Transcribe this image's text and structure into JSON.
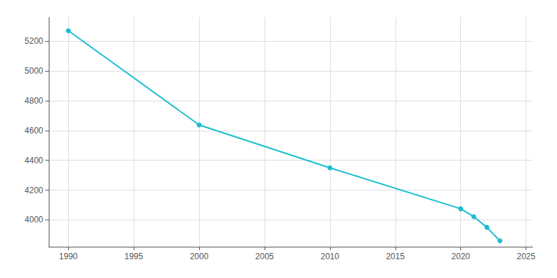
{
  "chart_data": {
    "type": "line",
    "x": [
      1990,
      2000,
      2010,
      2020,
      2021,
      2022,
      2023
    ],
    "values": [
      5270,
      4638,
      4350,
      4075,
      4022,
      3950,
      3860
    ],
    "color": "#17becf",
    "marker": "circle",
    "xlim": [
      1988.5,
      2025.5
    ],
    "ylim": [
      3820,
      5360
    ],
    "xticks": [
      1990,
      1995,
      2000,
      2005,
      2010,
      2015,
      2020,
      2025
    ],
    "yticks": [
      4000,
      4200,
      4400,
      4600,
      4800,
      5000,
      5200
    ],
    "grid": true
  }
}
